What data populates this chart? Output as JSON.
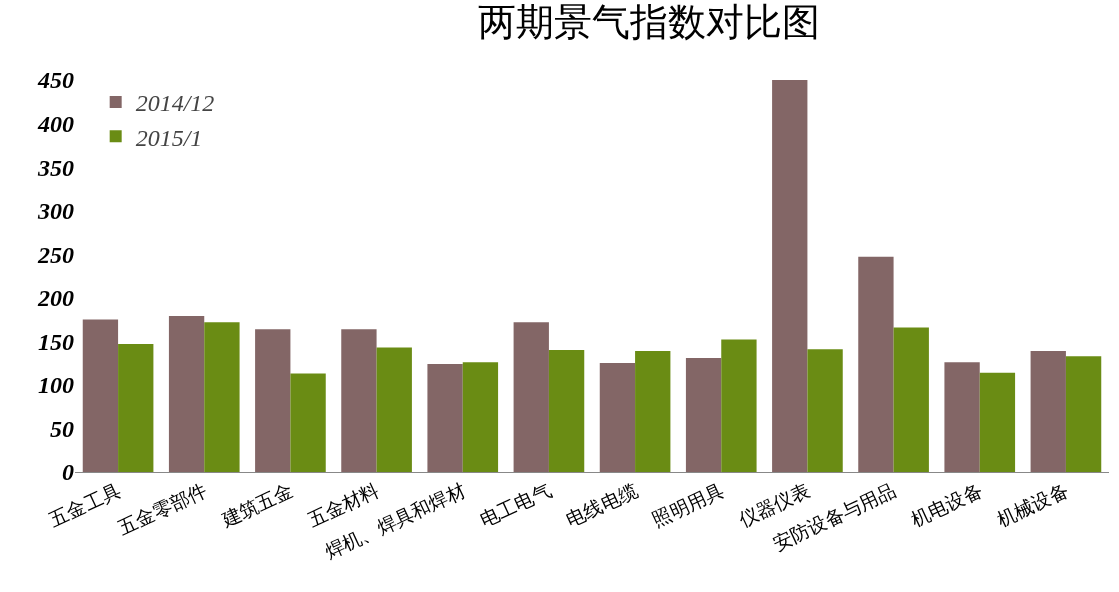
{
  "chart_data": {
    "type": "bar",
    "title": "两期景气指数对比图",
    "categories": [
      "五金工具",
      "五金零部件",
      "建筑五金",
      "五金材料",
      "焊机、焊具和焊材",
      "电工电气",
      "电线电缆",
      "照明用具",
      "仪器仪表",
      "安防设备与用品",
      "机电设备",
      "机械设备"
    ],
    "series": [
      {
        "name": "2014/12",
        "color": "#836666",
        "values": [
          175,
          179,
          164,
          164,
          124,
          172,
          125,
          131,
          450,
          247,
          126,
          139
        ]
      },
      {
        "name": "2015/1",
        "color": "#6a8c14",
        "values": [
          147,
          172,
          113,
          143,
          126,
          140,
          139,
          152,
          141,
          166,
          114,
          133
        ]
      }
    ],
    "ylim": [
      0,
      450
    ],
    "yticks": [
      0,
      50,
      100,
      150,
      200,
      250,
      300,
      350,
      400,
      450
    ],
    "grid": false,
    "legend": "top left"
  }
}
